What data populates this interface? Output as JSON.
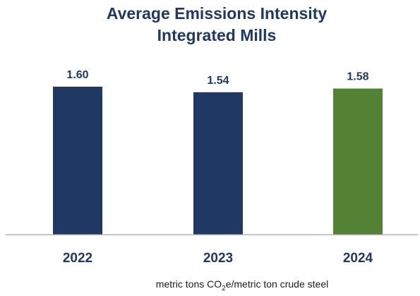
{
  "chart_data": {
    "type": "bar",
    "title": [
      "Average Emissions Intensity",
      "Integrated Mills"
    ],
    "categories": [
      "2022",
      "2023",
      "2024"
    ],
    "values": [
      1.6,
      1.54,
      1.58
    ],
    "value_labels": [
      "1.60",
      "1.54",
      "1.58"
    ],
    "unit_label": {
      "before": "metric tons CO",
      "subscript": "2",
      "after": "e/metric ton crude steel"
    },
    "ylim": [
      0,
      1.6
    ],
    "grid": false,
    "legend": "none",
    "colors": {
      "bars": [
        "#1f3864",
        "#1f3864",
        "#548235"
      ],
      "baseline": "#a6a6a6",
      "text": "#1f3864"
    }
  }
}
